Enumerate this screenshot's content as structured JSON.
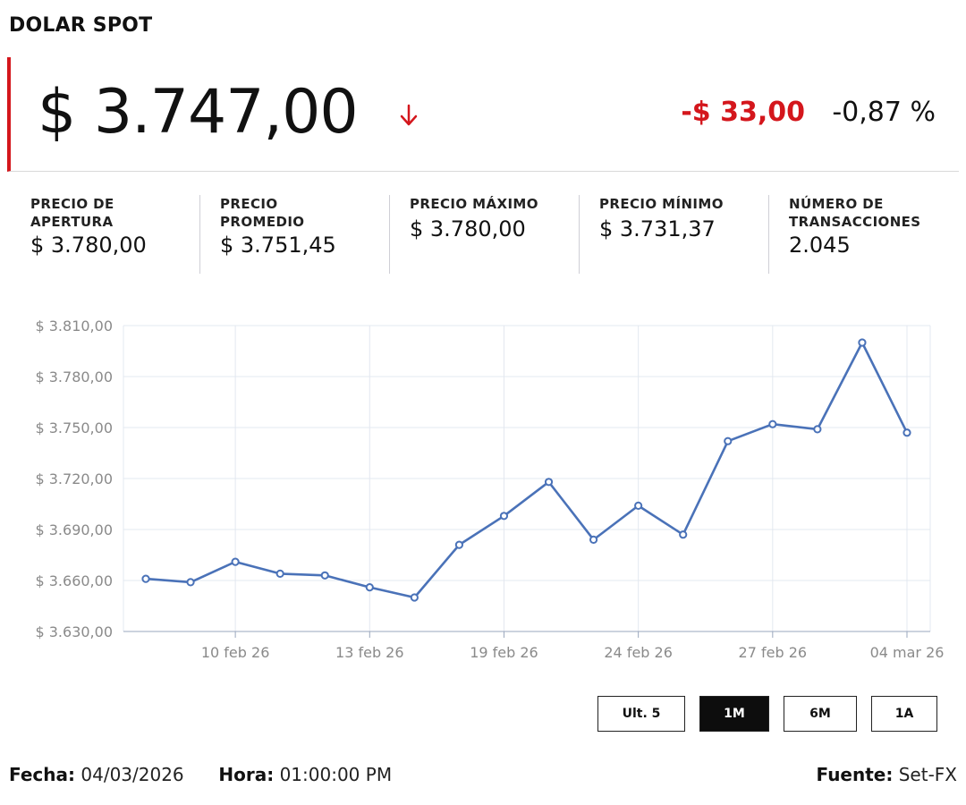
{
  "header": {
    "title": "DOLAR SPOT",
    "price": "$ 3.747,00",
    "change": "-$ 33,00",
    "change_pct": "-0,87 %",
    "trend_icon": "arrow-down-icon",
    "down_color": "#d4161c"
  },
  "stats": [
    {
      "label_line1": "PRECIO DE",
      "label_line2": "APERTURA",
      "value": "$ 3.780,00"
    },
    {
      "label_line1": "PRECIO",
      "label_line2": "PROMEDIO",
      "value": "$ 3.751,45"
    },
    {
      "label_line1": "PRECIO MÁXIMO",
      "label_line2": "",
      "value": "$ 3.780,00"
    },
    {
      "label_line1": "PRECIO MÍNIMO",
      "label_line2": "",
      "value": "$ 3.731,37"
    },
    {
      "label_line1": "NÚMERO DE",
      "label_line2": "TRANSACCIONES",
      "value": "2.045"
    }
  ],
  "chart_data": {
    "type": "line",
    "title": "",
    "xlabel": "",
    "ylabel": "",
    "ylim": [
      3630,
      3810
    ],
    "ytick_values": [
      3630,
      3660,
      3690,
      3720,
      3750,
      3780,
      3810
    ],
    "ytick_labels": [
      "$ 3.630,00",
      "$ 3.660,00",
      "$ 3.690,00",
      "$ 3.720,00",
      "$ 3.750,00",
      "$ 3.780,00",
      "$ 3.810,00"
    ],
    "xtick_labels": [
      "10 feb 26",
      "13 feb 26",
      "19 feb 26",
      "24 feb 26",
      "27 feb 26",
      "04 mar 26"
    ],
    "xtick_indices": [
      2,
      5,
      8,
      11,
      14,
      17
    ],
    "grid": true,
    "line_color": "#4a72b8",
    "series": [
      {
        "values": [
          3661,
          3659,
          3671,
          3664,
          3663,
          3656,
          3650,
          3681,
          3698,
          3718,
          3684,
          3704,
          3687,
          3742,
          3752,
          3749,
          3800,
          3747
        ]
      }
    ]
  },
  "range_buttons": [
    {
      "label": "Ult. 5",
      "active": false
    },
    {
      "label": "1M",
      "active": true
    },
    {
      "label": "6M",
      "active": false
    },
    {
      "label": "1A",
      "active": false
    }
  ],
  "footer": {
    "fecha_label": "Fecha:",
    "fecha_value": "04/03/2026",
    "hora_label": "Hora:",
    "hora_value": "01:00:00 PM",
    "fuente_label": "Fuente:",
    "fuente_value": "Set-FX"
  }
}
